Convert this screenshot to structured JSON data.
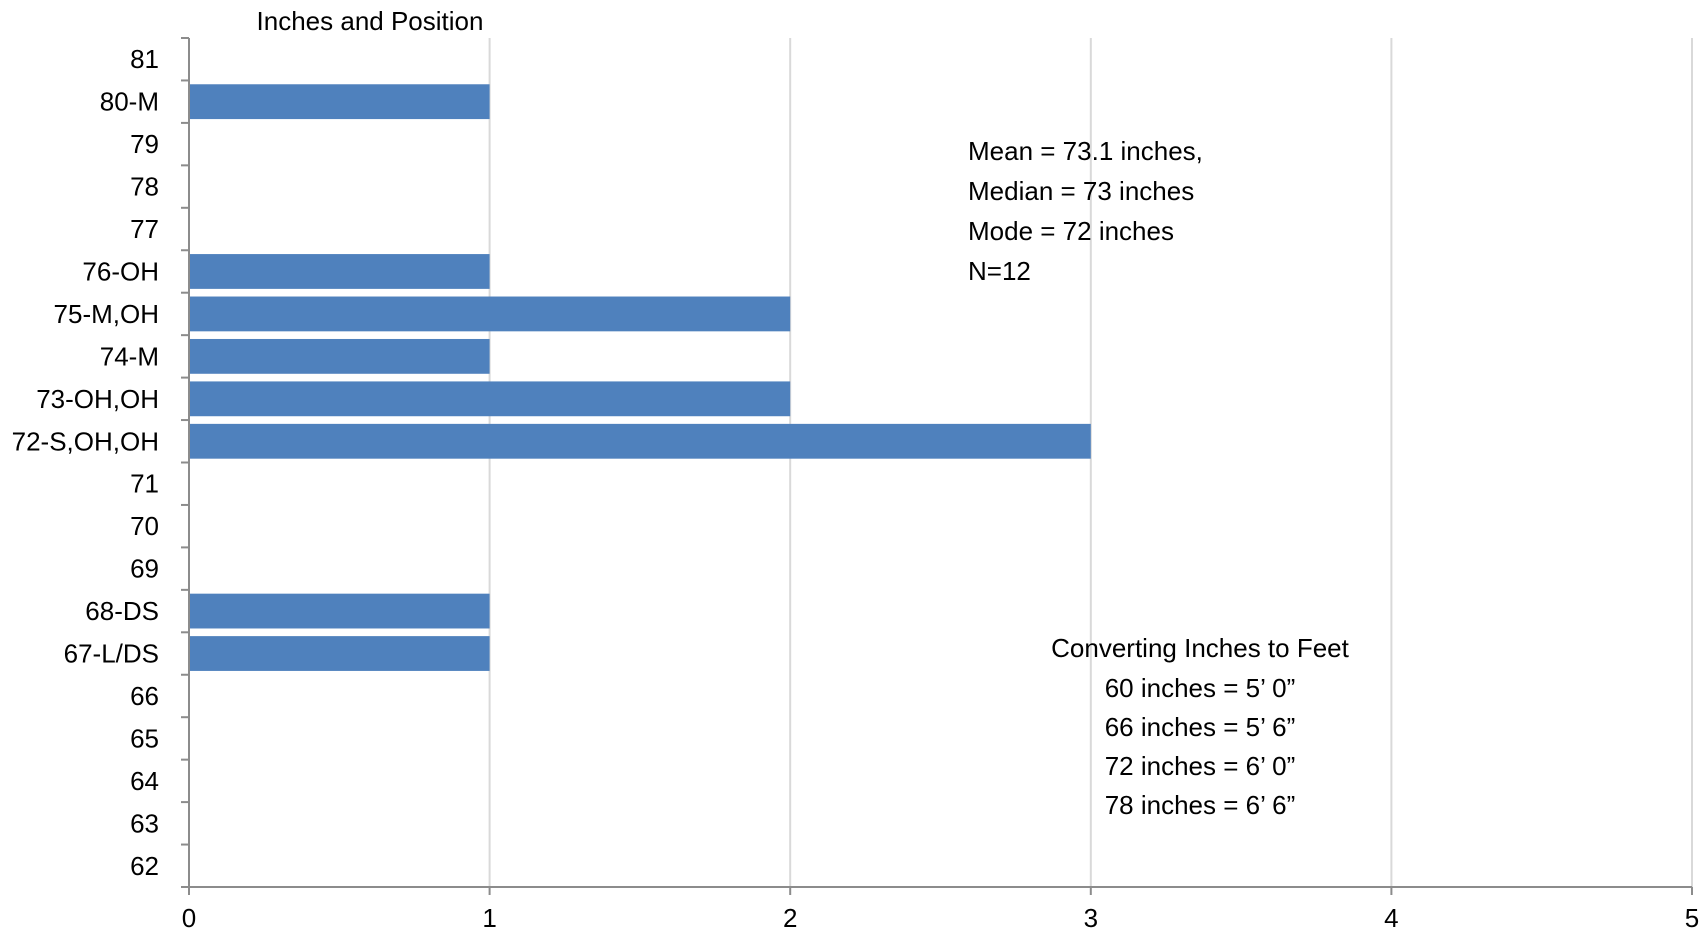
{
  "chart_data": {
    "type": "bar",
    "orientation": "horizontal",
    "title": "Inches and Position",
    "categories": [
      "62",
      "63",
      "64",
      "65",
      "66",
      "67-L/DS",
      "68-DS",
      "69",
      "70",
      "71",
      "72-S,OH,OH",
      "73-OH,OH",
      "74-M",
      "75-M,OH",
      "76-OH",
      "77",
      "78",
      "79",
      "80-M",
      "81"
    ],
    "values": [
      0,
      0,
      0,
      0,
      0,
      1,
      1,
      0,
      0,
      0,
      3,
      2,
      1,
      2,
      1,
      0,
      0,
      0,
      1,
      0
    ],
    "xlabel": "",
    "ylabel": "",
    "xlim": [
      0,
      5
    ],
    "xticks": [
      "0",
      "1",
      "2",
      "3",
      "4",
      "5"
    ],
    "grid": "vertical",
    "legend": "none",
    "bar_color": "#4f81bd",
    "annotations": {
      "stats": [
        "Mean = 73.1 inches,",
        "Median =  73 inches",
        "Mode  = 72 inches",
        "N=12"
      ],
      "conversion_title": "Converting Inches to Feet",
      "conversion": [
        "60 inches = 5’ 0”",
        "66 inches = 5’ 6”",
        "72 inches = 6’ 0”",
        "78 inches = 6’ 6”"
      ]
    }
  }
}
